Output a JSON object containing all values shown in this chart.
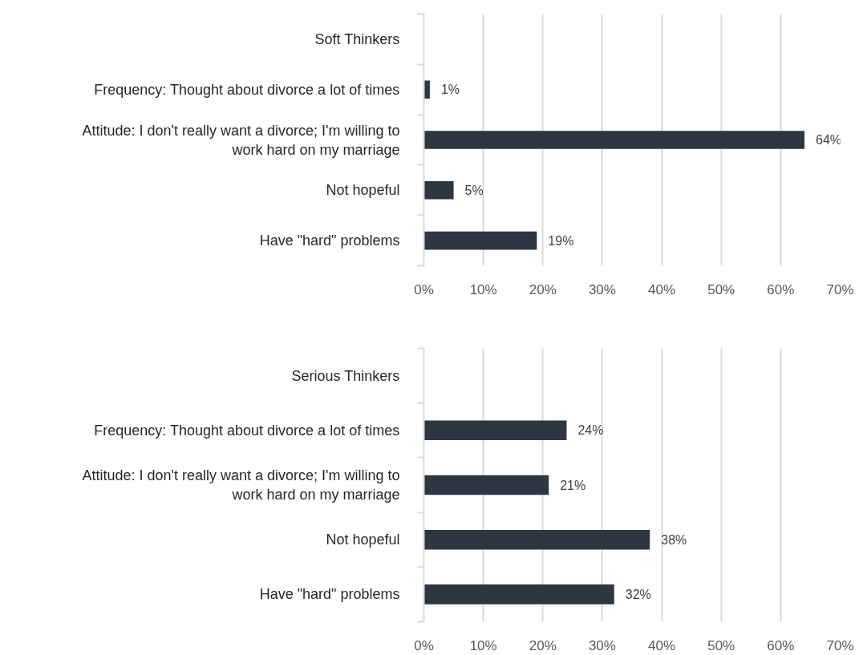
{
  "chart_data": [
    {
      "type": "bar",
      "orientation": "horizontal",
      "categories": [
        "Soft Thinkers",
        "Frequency: Thought about divorce a lot of times",
        "Attitude: I don't really want a divorce; I'm willing to work hard on my marriage",
        "Not hopeful",
        "Have \"hard\" problems"
      ],
      "values": [
        null,
        1,
        64,
        5,
        19
      ],
      "color": "#2d3743",
      "value_labels": [
        null,
        "1%",
        "64%",
        "5%",
        "19%"
      ],
      "xlim": [
        0,
        70
      ],
      "xticks": [
        {
          "value": 0,
          "label": "0%"
        },
        {
          "value": 10,
          "label": "10%"
        },
        {
          "value": 20,
          "label": "20%"
        },
        {
          "value": 30,
          "label": "30%"
        },
        {
          "value": 40,
          "label": "40%"
        },
        {
          "value": 50,
          "label": "50%"
        },
        {
          "value": 60,
          "label": "60%"
        },
        {
          "value": 70,
          "label": "70%"
        }
      ],
      "grid": "x"
    },
    {
      "type": "bar",
      "orientation": "horizontal",
      "categories": [
        "Serious Thinkers",
        "Frequency: Thought about divorce a lot of times",
        "Attitude: I don't really want a divorce; I'm willing to work hard on my marriage",
        "Not hopeful",
        "Have \"hard\" problems"
      ],
      "values": [
        null,
        24,
        21,
        38,
        32
      ],
      "color": "#2d3743",
      "value_labels": [
        null,
        "24%",
        "21%",
        "38%",
        "32%"
      ],
      "xlim": [
        0,
        70
      ],
      "xticks": [
        {
          "value": 0,
          "label": "0%"
        },
        {
          "value": 10,
          "label": "10%"
        },
        {
          "value": 20,
          "label": "20%"
        },
        {
          "value": 30,
          "label": "30%"
        },
        {
          "value": 40,
          "label": "40%"
        },
        {
          "value": 50,
          "label": "50%"
        },
        {
          "value": 60,
          "label": "60%"
        },
        {
          "value": 70,
          "label": "70%"
        }
      ],
      "grid": "x"
    }
  ]
}
